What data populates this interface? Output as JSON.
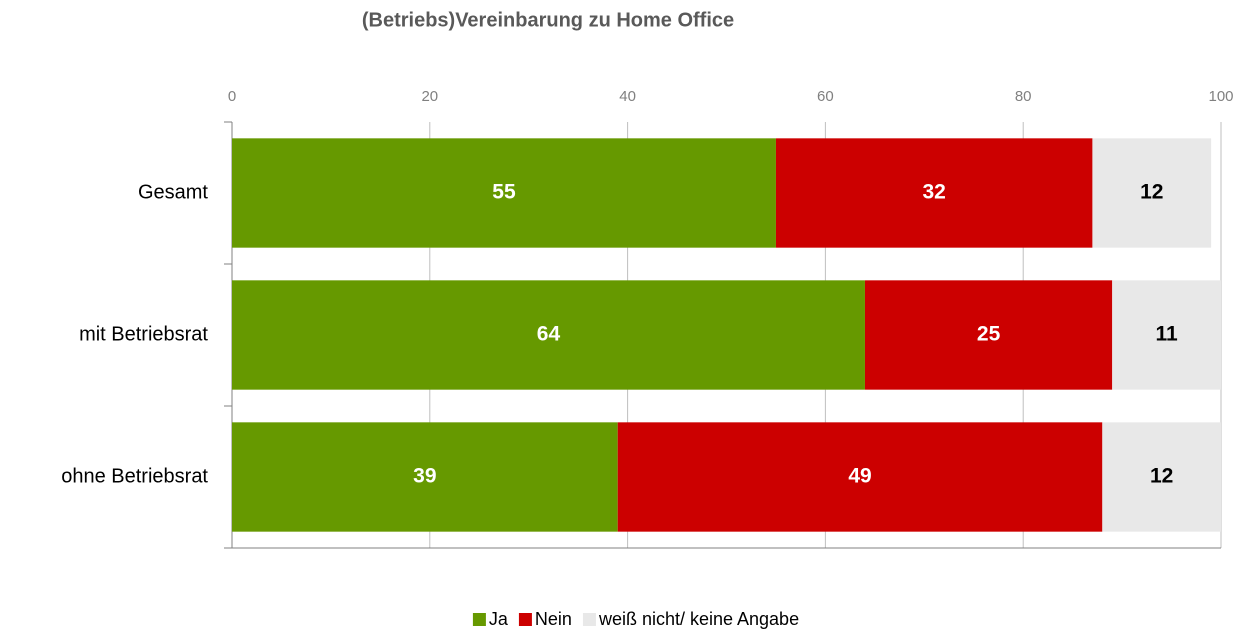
{
  "chart_data": {
    "type": "stacked_bar_horizontal",
    "title": "(Betriebs)Vereinbarung zu Home Office",
    "categories": [
      "Gesamt",
      "mit Betriebsrat",
      "ohne Betriebsrat"
    ],
    "series": [
      {
        "name": "Ja",
        "color": "#669900",
        "values": [
          55,
          64,
          39
        ]
      },
      {
        "name": "Nein",
        "color": "#cc0000",
        "values": [
          32,
          25,
          49
        ]
      },
      {
        "name": "weiß nicht/ keine Angabe",
        "color": "#e8e8e8",
        "values": [
          12,
          11,
          12
        ]
      }
    ],
    "xlim": [
      0,
      100
    ],
    "xticks": [
      0,
      20,
      40,
      60,
      80,
      100
    ],
    "grid": true,
    "legend": "bottom"
  }
}
